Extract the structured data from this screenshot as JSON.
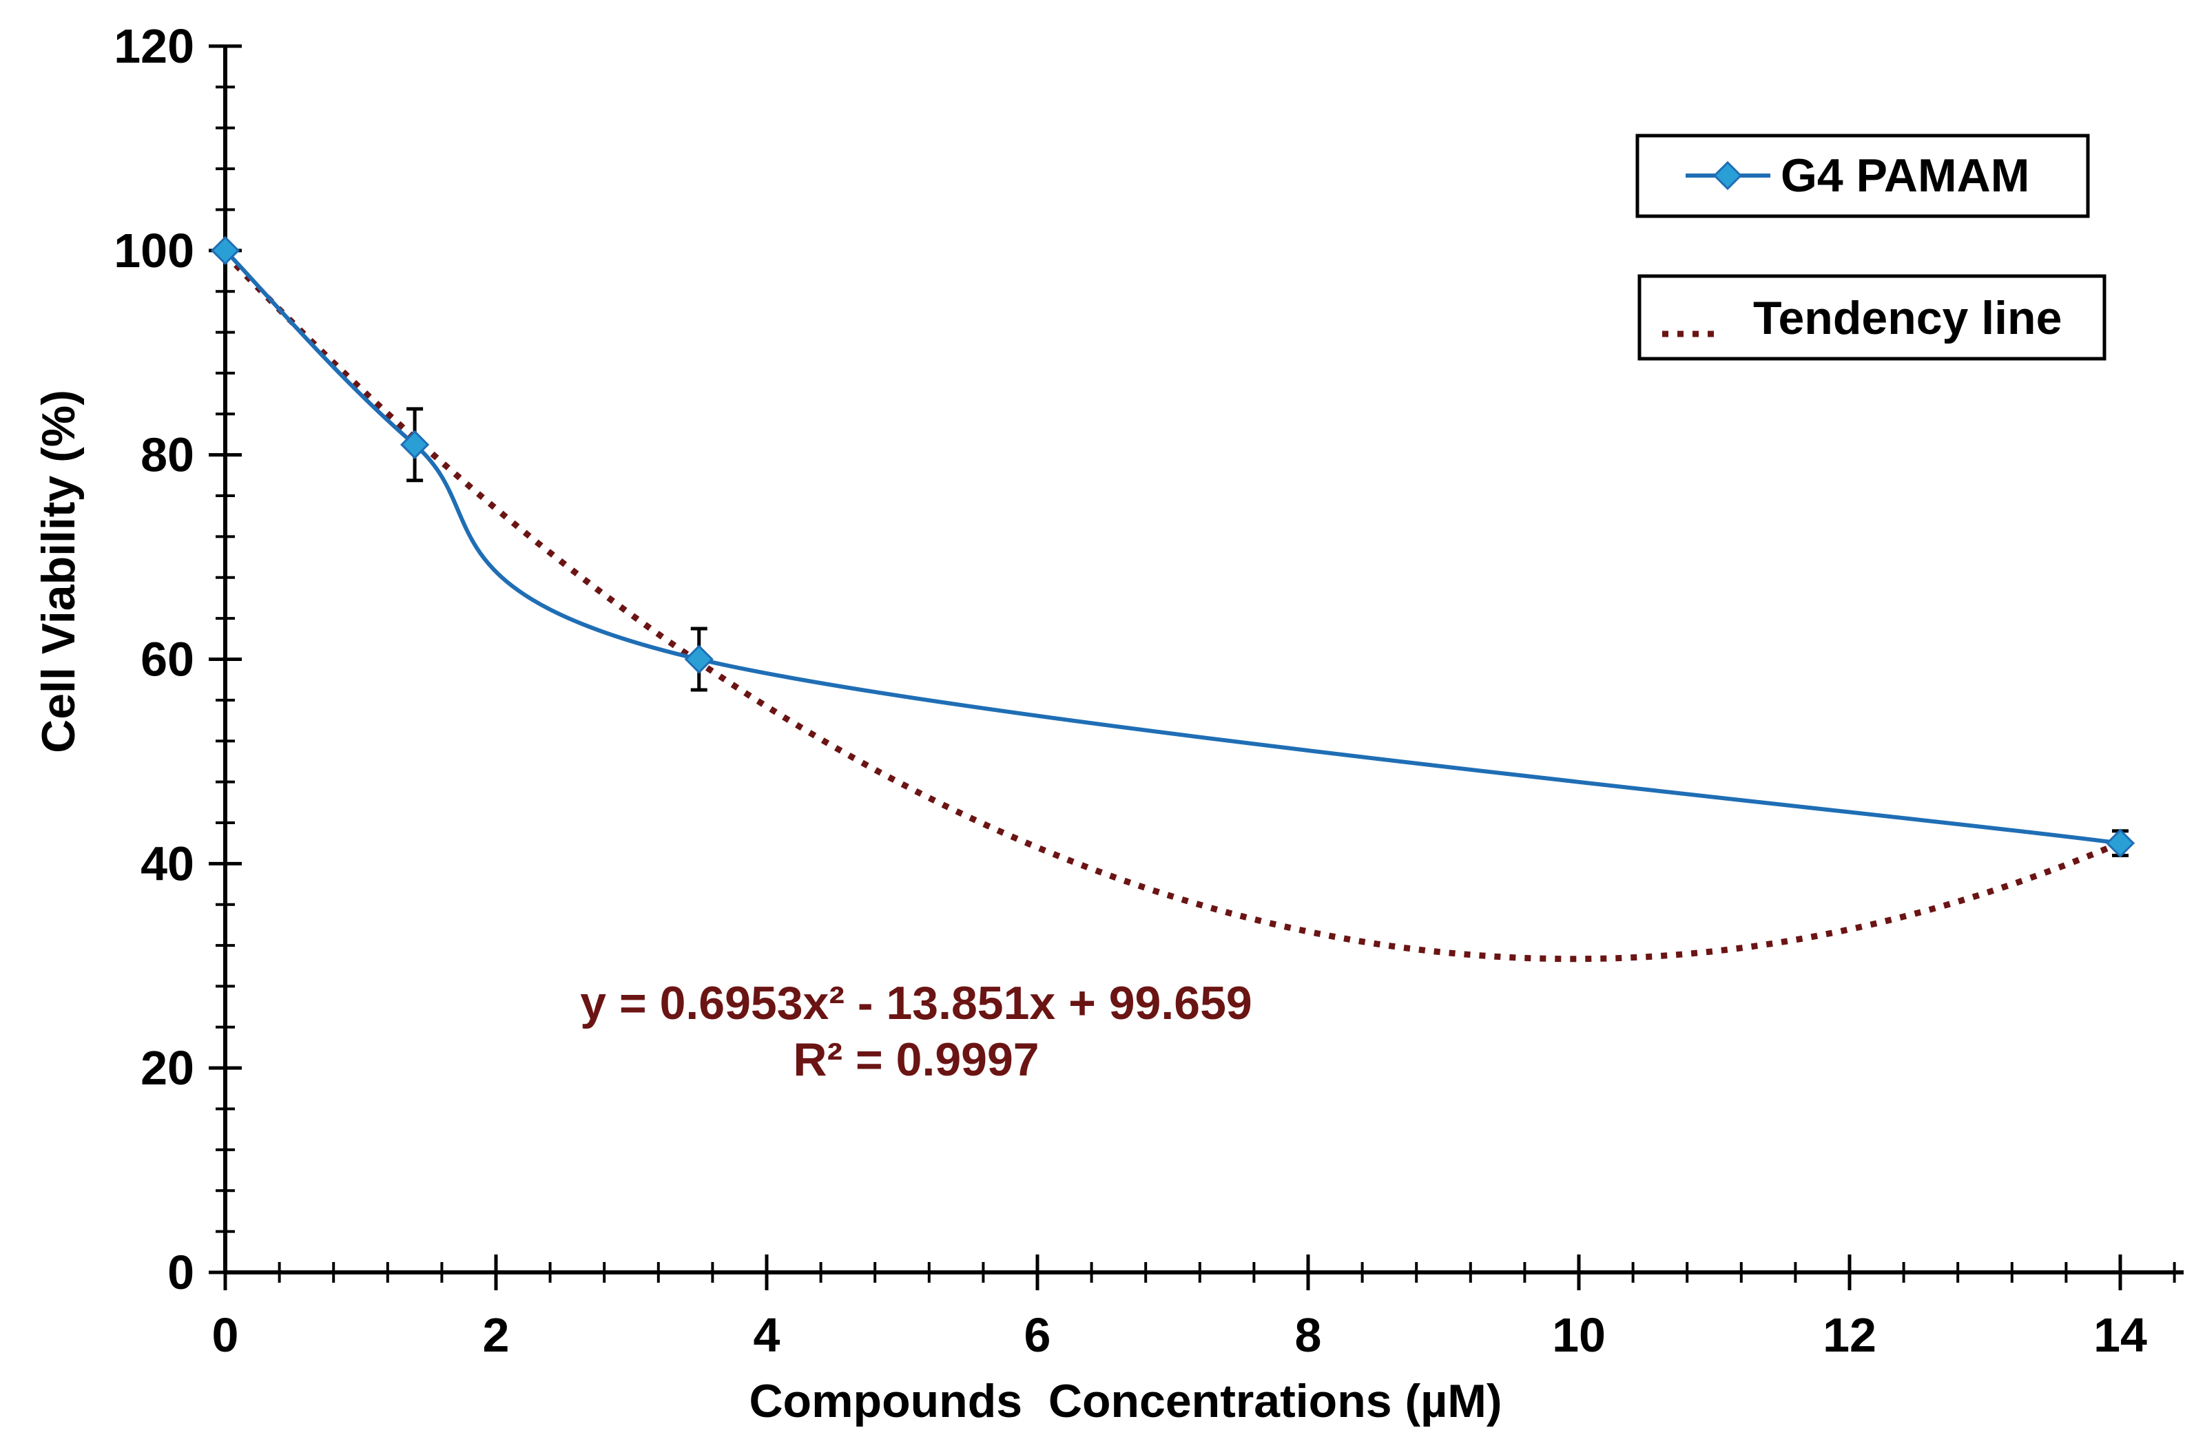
{
  "chart_data": {
    "type": "line",
    "title": "",
    "xlabel": "Compounds  Concentrations (µM)",
    "ylabel": "Cell Viability (%)",
    "xlim": [
      0,
      14.4
    ],
    "ylim": [
      0,
      120
    ],
    "x_ticks": [
      0,
      2,
      4,
      6,
      8,
      10,
      12,
      14
    ],
    "y_ticks": [
      0,
      20,
      40,
      60,
      80,
      100,
      120
    ],
    "x_tick_labels": [
      "0",
      "2",
      "4",
      "6",
      "8",
      "10",
      "12",
      "14"
    ],
    "y_tick_labels": [
      "0",
      "20",
      "40",
      "60",
      "80",
      "100",
      "120"
    ],
    "grid": false,
    "series": [
      {
        "name": "G4 PAMAM",
        "color": "#1f6eb5",
        "marker_color": "#2a9fd6",
        "marker": "diamond",
        "smooth": true,
        "x": [
          0,
          1.4,
          3.5,
          14
        ],
        "y": [
          100,
          81,
          60,
          42
        ],
        "error": [
          0,
          3.5,
          3,
          1.2
        ]
      }
    ],
    "trendline": {
      "name": "Tendency line",
      "color": "#6b1414",
      "style": "dotted",
      "kind": "polynomial-2",
      "coefficients": {
        "a": 0.6953,
        "b": -13.851,
        "c": 99.659
      },
      "equation_label": "y = 0.6953x² - 13.851x + 99.659",
      "r2_label": "R² = 0.9997",
      "x_range": [
        0,
        14
      ]
    },
    "legend": [
      {
        "label": "G4 PAMAM",
        "kind": "series"
      },
      {
        "label": "Tendency line",
        "kind": "trendline"
      }
    ],
    "legend_position": "top-right"
  }
}
